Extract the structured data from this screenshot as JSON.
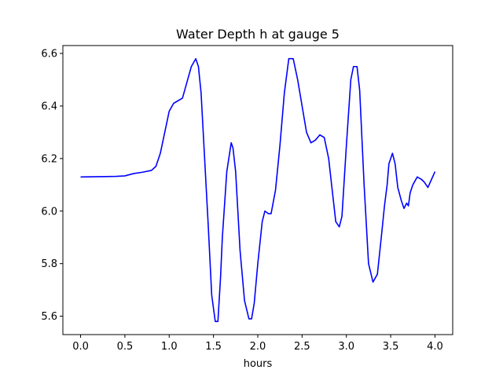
{
  "chart_data": {
    "type": "line",
    "title": "Water Depth h at gauge 5",
    "xlabel": "hours",
    "ylabel": "",
    "xlim": [
      -0.2,
      4.2
    ],
    "ylim": [
      5.53,
      6.63
    ],
    "grid": false,
    "xticks": [
      0.0,
      0.5,
      1.0,
      1.5,
      2.0,
      2.5,
      3.0,
      3.5,
      4.0
    ],
    "xtick_labels": [
      "0.0",
      "0.5",
      "1.0",
      "1.5",
      "2.0",
      "2.5",
      "3.0",
      "3.5",
      "4.0"
    ],
    "yticks": [
      5.6,
      5.8,
      6.0,
      6.2,
      6.4,
      6.6
    ],
    "ytick_labels": [
      "5.6",
      "5.8",
      "6.0",
      "6.2",
      "6.4",
      "6.6"
    ],
    "series": [
      {
        "color": "#0000ff",
        "x": [
          0.0,
          0.2,
          0.4,
          0.5,
          0.6,
          0.7,
          0.8,
          0.85,
          0.9,
          0.95,
          1.0,
          1.05,
          1.1,
          1.15,
          1.2,
          1.25,
          1.3,
          1.33,
          1.36,
          1.4,
          1.44,
          1.48,
          1.52,
          1.55,
          1.58,
          1.6,
          1.65,
          1.7,
          1.72,
          1.75,
          1.8,
          1.85,
          1.9,
          1.93,
          1.96,
          2.0,
          2.05,
          2.08,
          2.12,
          2.15,
          2.2,
          2.25,
          2.3,
          2.35,
          2.4,
          2.45,
          2.5,
          2.55,
          2.6,
          2.65,
          2.7,
          2.75,
          2.8,
          2.85,
          2.88,
          2.92,
          2.95,
          3.0,
          3.05,
          3.08,
          3.12,
          3.15,
          3.2,
          3.25,
          3.3,
          3.35,
          3.4,
          3.43,
          3.46,
          3.48,
          3.5,
          3.52,
          3.55,
          3.58,
          3.62,
          3.65,
          3.68,
          3.7,
          3.72,
          3.75,
          3.8,
          3.85,
          3.88,
          3.92,
          3.96,
          4.0
        ],
        "y": [
          6.13,
          6.131,
          6.132,
          6.134,
          6.143,
          6.148,
          6.155,
          6.17,
          6.22,
          6.3,
          6.38,
          6.41,
          6.42,
          6.43,
          6.49,
          6.55,
          6.58,
          6.55,
          6.45,
          6.2,
          5.95,
          5.68,
          5.58,
          5.58,
          5.75,
          5.9,
          6.15,
          6.26,
          6.24,
          6.15,
          5.85,
          5.66,
          5.59,
          5.59,
          5.65,
          5.8,
          5.96,
          6.0,
          5.99,
          5.99,
          6.08,
          6.25,
          6.45,
          6.58,
          6.58,
          6.5,
          6.4,
          6.3,
          6.26,
          6.27,
          6.29,
          6.28,
          6.2,
          6.05,
          5.96,
          5.94,
          5.98,
          6.25,
          6.5,
          6.55,
          6.55,
          6.46,
          6.1,
          5.8,
          5.73,
          5.76,
          5.92,
          6.02,
          6.1,
          6.18,
          6.2,
          6.22,
          6.18,
          6.09,
          6.04,
          6.01,
          6.03,
          6.02,
          6.07,
          6.1,
          6.13,
          6.12,
          6.11,
          6.09,
          6.12,
          6.15
        ]
      }
    ]
  }
}
